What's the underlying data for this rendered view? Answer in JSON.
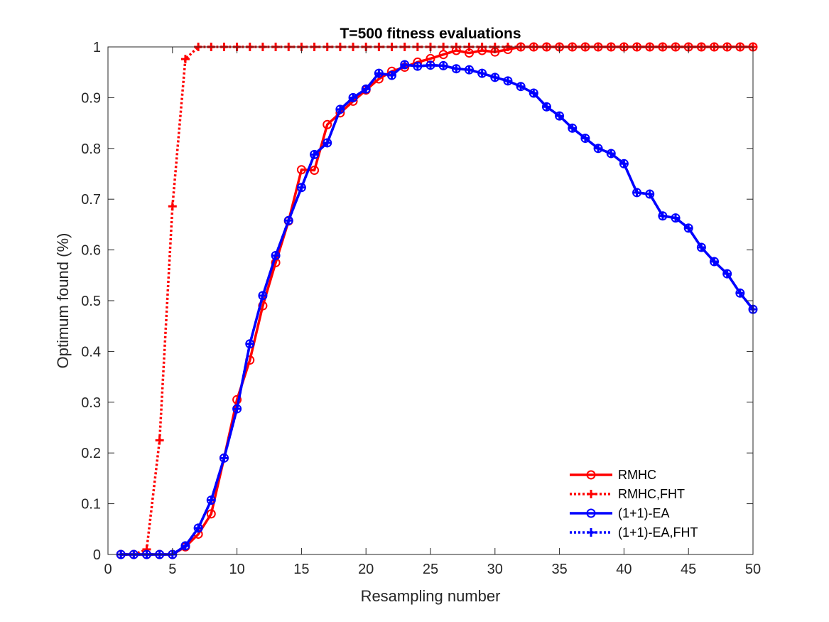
{
  "chart_data": {
    "type": "line",
    "title": "T=500 fitness evaluations",
    "xlabel": "Resampling number",
    "ylabel": "Optimum found (%)",
    "xlim": [
      0,
      50
    ],
    "ylim": [
      0,
      1
    ],
    "xticks": [
      0,
      5,
      10,
      15,
      20,
      25,
      30,
      35,
      40,
      45,
      50
    ],
    "yticks": [
      0,
      0.1,
      0.2,
      0.3,
      0.4,
      0.5,
      0.6,
      0.7,
      0.8,
      0.9,
      1
    ],
    "grid": false,
    "legend_position": "bottom-right",
    "x": [
      1,
      2,
      3,
      4,
      5,
      6,
      7,
      8,
      9,
      10,
      11,
      12,
      13,
      14,
      15,
      16,
      17,
      18,
      19,
      20,
      21,
      22,
      23,
      24,
      25,
      26,
      27,
      28,
      29,
      30,
      31,
      32,
      33,
      34,
      35,
      36,
      37,
      38,
      39,
      40,
      41,
      42,
      43,
      44,
      45,
      46,
      47,
      48,
      49,
      50
    ],
    "series": [
      {
        "name": "RMHC",
        "color": "#ff0000",
        "line_style": "solid",
        "marker": "circle",
        "values": [
          0,
          0,
          0,
          0,
          0,
          0.015,
          0.04,
          0.08,
          0.19,
          0.305,
          0.383,
          0.49,
          0.575,
          0.657,
          0.758,
          0.757,
          0.847,
          0.87,
          0.893,
          0.915,
          0.937,
          0.952,
          0.96,
          0.97,
          0.977,
          0.985,
          0.993,
          0.988,
          0.993,
          0.99,
          0.995,
          1,
          1,
          1,
          1,
          1,
          1,
          1,
          1,
          1,
          1,
          1,
          1,
          1,
          1,
          1,
          1,
          1,
          1,
          1
        ]
      },
      {
        "name": "RMHC,FHT",
        "color": "#ff0000",
        "line_style": "dotted",
        "marker": "plus",
        "values": [
          0,
          0,
          0.01,
          0.225,
          0.686,
          0.976,
          1,
          1,
          1,
          1,
          1,
          1,
          1,
          1,
          1,
          1,
          1,
          1,
          1,
          1,
          1,
          1,
          1,
          1,
          1,
          1,
          1,
          1,
          1,
          1,
          1,
          1,
          1,
          1,
          1,
          1,
          1,
          1,
          1,
          1,
          1,
          1,
          1,
          1,
          1,
          1,
          1,
          1,
          1,
          1
        ]
      },
      {
        "name": "(1+1)-EA",
        "color": "#0000ff",
        "line_style": "solid",
        "marker": "circle",
        "values": [
          0,
          0,
          0,
          0,
          0,
          0.017,
          0.052,
          0.107,
          0.19,
          0.287,
          0.415,
          0.51,
          0.589,
          0.658,
          0.723,
          0.788,
          0.811,
          0.877,
          0.9,
          0.917,
          0.948,
          0.944,
          0.965,
          0.962,
          0.964,
          0.963,
          0.957,
          0.955,
          0.948,
          0.94,
          0.933,
          0.922,
          0.909,
          0.882,
          0.864,
          0.84,
          0.82,
          0.8,
          0.79,
          0.77,
          0.713,
          0.71,
          0.667,
          0.663,
          0.643,
          0.605,
          0.577,
          0.553,
          0.515,
          0.483
        ]
      },
      {
        "name": "(1+1)-EA,FHT",
        "color": "#0000ff",
        "line_style": "dotted",
        "marker": "plus",
        "values": [
          0,
          0,
          0,
          0,
          0,
          0.017,
          0.052,
          0.107,
          0.19,
          0.287,
          0.415,
          0.51,
          0.589,
          0.658,
          0.723,
          0.788,
          0.811,
          0.877,
          0.9,
          0.917,
          0.948,
          0.944,
          0.965,
          0.962,
          0.964,
          0.963,
          0.957,
          0.955,
          0.948,
          0.94,
          0.933,
          0.922,
          0.909,
          0.882,
          0.864,
          0.84,
          0.82,
          0.8,
          0.79,
          0.77,
          0.713,
          0.71,
          0.667,
          0.663,
          0.643,
          0.605,
          0.577,
          0.553,
          0.515,
          0.483
        ]
      }
    ]
  }
}
